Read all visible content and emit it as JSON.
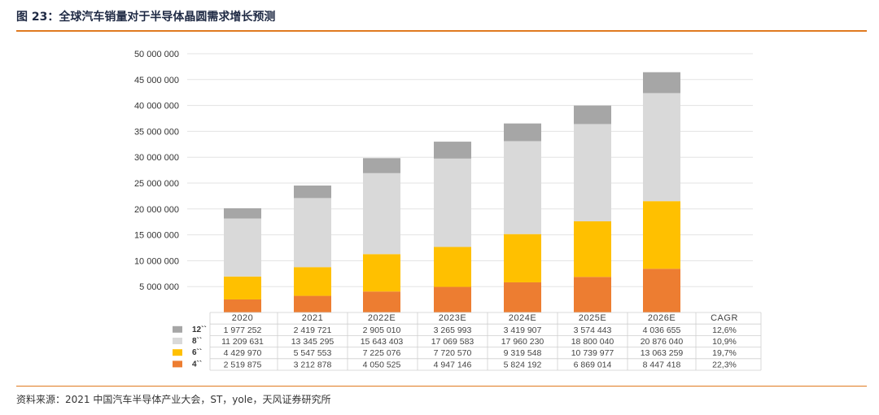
{
  "header": {
    "caption": "图 23：全球汽车销量对于半导体晶圆需求增长预测"
  },
  "footer": {
    "source": "资料来源：2021 中国汽车半导体产业大会，ST，yole，天风证券研究所"
  },
  "colors": {
    "rule": "#e07a20",
    "s12": "#a6a6a6",
    "s8": "#d9d9d9",
    "s6": "#ffc000",
    "s4": "#ed7d31"
  },
  "chart_data": {
    "type": "bar",
    "stacked": true,
    "categories": [
      "2020",
      "2021",
      "2022E",
      "2023E",
      "2024E",
      "2025E",
      "2026E"
    ],
    "ylim": [
      0,
      50000000
    ],
    "yticks": [
      "5 000 000",
      "10 000 000",
      "15 000 000",
      "20 000 000",
      "25 000 000",
      "30 000 000",
      "35 000 000",
      "40 000 000",
      "45 000 000",
      "50 000 000"
    ],
    "cagr_header": "CAGR",
    "grid": true,
    "series": [
      {
        "name": "4``",
        "color": "#ed7d31",
        "values": [
          2519875,
          3212878,
          4050525,
          4947146,
          5824192,
          6869014,
          8447418
        ],
        "labels": [
          "2 519 875",
          "3 212 878",
          "4 050 525",
          "4 947 146",
          "5 824 192",
          "6 869 014",
          "8 447 418"
        ],
        "cagr": "22,3%"
      },
      {
        "name": "6``",
        "color": "#ffc000",
        "values": [
          4429970,
          5547553,
          7225076,
          7720570,
          9319548,
          10739977,
          13063259
        ],
        "labels": [
          "4 429 970",
          "5 547 553",
          "7 225 076",
          "7 720 570",
          "9 319 548",
          "10 739 977",
          "13 063 259"
        ],
        "cagr": "19,7%"
      },
      {
        "name": "8``",
        "color": "#d9d9d9",
        "values": [
          11209631,
          13345295,
          15643403,
          17069583,
          17960230,
          18800040,
          20876040
        ],
        "labels": [
          "11 209 631",
          "13 345 295",
          "15 643 403",
          "17 069 583",
          "17 960 230",
          "18 800 040",
          "20 876 040"
        ],
        "cagr": "10,9%"
      },
      {
        "name": "12``",
        "color": "#a6a6a6",
        "values": [
          1977252,
          2419721,
          2905010,
          3265993,
          3419907,
          3574443,
          4036655
        ],
        "labels": [
          "1 977 252",
          "2 419 721",
          "2 905 010",
          "3 265 993",
          "3 419 907",
          "3 574 443",
          "4 036 655"
        ],
        "cagr": "12,6%"
      }
    ]
  }
}
